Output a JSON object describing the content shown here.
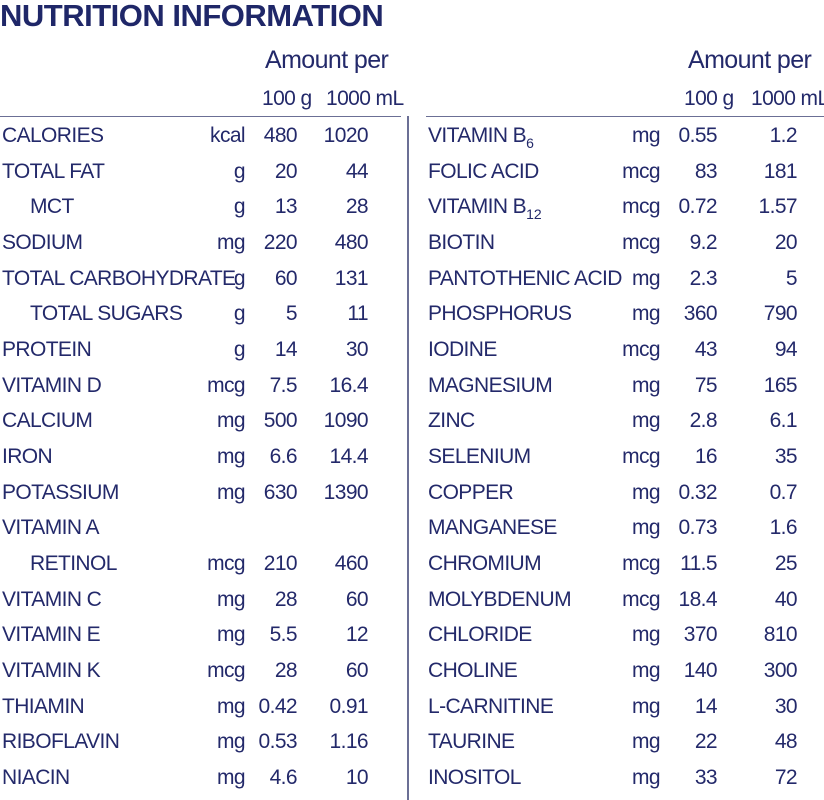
{
  "title": "NUTRITION INFORMATION",
  "tables": [
    {
      "header": {
        "amount": "Amount per",
        "col1": "100 g",
        "col2": "1000 mL"
      },
      "rows": [
        {
          "name": "CALORIES",
          "unit": "kcal",
          "per_100g": 480,
          "per_1000ml": 1020
        },
        {
          "name": "TOTAL FAT",
          "unit": "g",
          "per_100g": 20,
          "per_1000ml": 44
        },
        {
          "name": "MCT",
          "indent": true,
          "unit": "g",
          "per_100g": 13,
          "per_1000ml": 28
        },
        {
          "name": "SODIUM",
          "unit": "mg",
          "per_100g": 220,
          "per_1000ml": 480
        },
        {
          "name": "TOTAL CARBOHYDRATE",
          "unit": "g",
          "per_100g": 60,
          "per_1000ml": 131
        },
        {
          "name": "TOTAL SUGARS",
          "indent": true,
          "unit": "g",
          "per_100g": 5,
          "per_1000ml": 11
        },
        {
          "name": "PROTEIN",
          "unit": "g",
          "per_100g": 14,
          "per_1000ml": 30
        },
        {
          "name": "VITAMIN D",
          "unit": "mcg",
          "per_100g": 7.5,
          "per_1000ml": 16.4
        },
        {
          "name": "CALCIUM",
          "unit": "mg",
          "per_100g": 500,
          "per_1000ml": 1090
        },
        {
          "name": "IRON",
          "unit": "mg",
          "per_100g": 6.6,
          "per_1000ml": 14.4
        },
        {
          "name": "POTASSIUM",
          "unit": "mg",
          "per_100g": 630,
          "per_1000ml": 1390
        },
        {
          "name": "VITAMIN A"
        },
        {
          "name": "RETINOL",
          "indent": true,
          "unit": "mcg",
          "per_100g": 210,
          "per_1000ml": 460
        },
        {
          "name": "VITAMIN C",
          "unit": "mg",
          "per_100g": 28,
          "per_1000ml": 60
        },
        {
          "name": "VITAMIN E",
          "unit": "mg",
          "per_100g": 5.5,
          "per_1000ml": 12
        },
        {
          "name": "VITAMIN K",
          "unit": "mcg",
          "per_100g": 28,
          "per_1000ml": 60
        },
        {
          "name": "THIAMIN",
          "unit": "mg",
          "per_100g": 0.42,
          "per_1000ml": 0.91
        },
        {
          "name": "RIBOFLAVIN",
          "unit": "mg",
          "per_100g": 0.53,
          "per_1000ml": 1.16
        },
        {
          "name": "NIACIN",
          "unit": "mg",
          "per_100g": 4.6,
          "per_1000ml": 10
        }
      ]
    },
    {
      "header": {
        "amount": "Amount per",
        "col1": "100 g",
        "col2": "1000 mL"
      },
      "rows": [
        {
          "name": "VITAMIN B",
          "sub": "6",
          "unit": "mg",
          "per_100g": 0.55,
          "per_1000ml": 1.2
        },
        {
          "name": "FOLIC ACID",
          "unit": "mcg",
          "per_100g": 83,
          "per_1000ml": 181
        },
        {
          "name": "VITAMIN B",
          "sub": "12",
          "unit": "mcg",
          "per_100g": 0.72,
          "per_1000ml": 1.57
        },
        {
          "name": "BIOTIN",
          "unit": "mcg",
          "per_100g": 9.2,
          "per_1000ml": 20
        },
        {
          "name": "PANTOTHENIC ACID",
          "unit": "mg",
          "per_100g": 2.3,
          "per_1000ml": 5
        },
        {
          "name": "PHOSPHORUS",
          "unit": "mg",
          "per_100g": 360,
          "per_1000ml": 790
        },
        {
          "name": "IODINE",
          "unit": "mcg",
          "per_100g": 43,
          "per_1000ml": 94
        },
        {
          "name": "MAGNESIUM",
          "unit": "mg",
          "per_100g": 75,
          "per_1000ml": 165
        },
        {
          "name": "ZINC",
          "unit": "mg",
          "per_100g": 2.8,
          "per_1000ml": 6.1
        },
        {
          "name": "SELENIUM",
          "unit": "mcg",
          "per_100g": 16,
          "per_1000ml": 35
        },
        {
          "name": "COPPER",
          "unit": "mg",
          "per_100g": 0.32,
          "per_1000ml": 0.7
        },
        {
          "name": "MANGANESE",
          "unit": "mg",
          "per_100g": 0.73,
          "per_1000ml": 1.6
        },
        {
          "name": "CHROMIUM",
          "unit": "mcg",
          "per_100g": 11.5,
          "per_1000ml": 25
        },
        {
          "name": "MOLYBDENUM",
          "unit": "mcg",
          "per_100g": 18.4,
          "per_1000ml": 40
        },
        {
          "name": "CHLORIDE",
          "unit": "mg",
          "per_100g": 370,
          "per_1000ml": 810
        },
        {
          "name": "CHOLINE",
          "unit": "mg",
          "per_100g": 140,
          "per_1000ml": 300
        },
        {
          "name": "L-CARNITINE",
          "unit": "mg",
          "per_100g": 14,
          "per_1000ml": 30
        },
        {
          "name": "TAURINE",
          "unit": "mg",
          "per_100g": 22,
          "per_1000ml": 48
        },
        {
          "name": "INOSITOL",
          "unit": "mg",
          "per_100g": 33,
          "per_1000ml": 72
        }
      ]
    }
  ]
}
